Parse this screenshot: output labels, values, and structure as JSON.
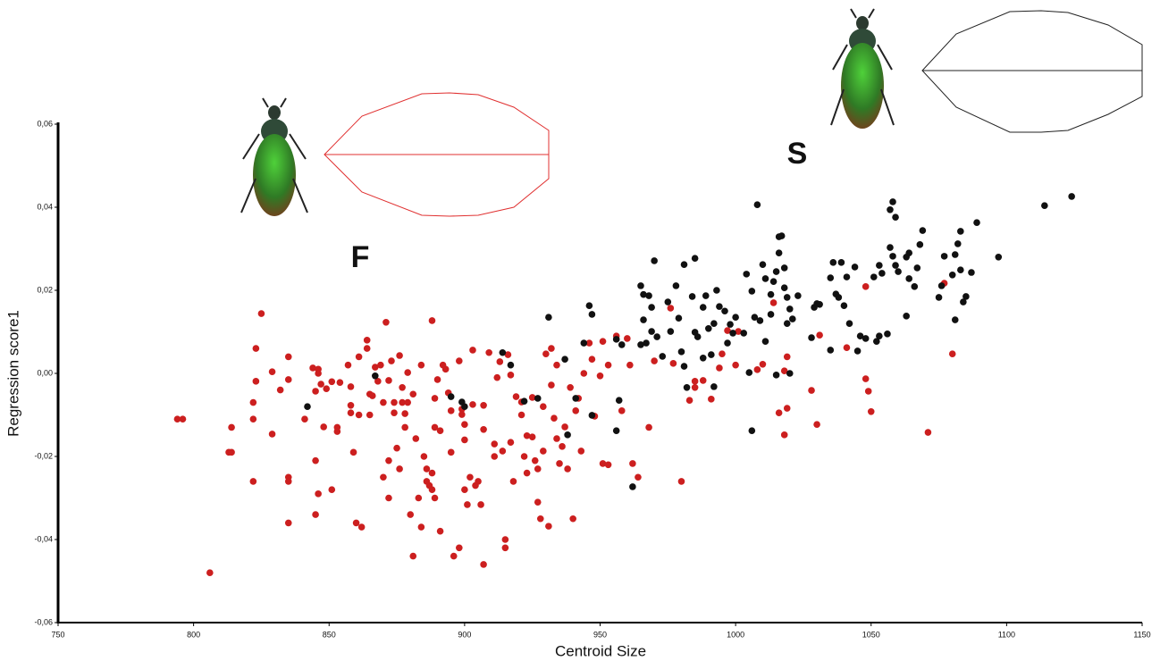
{
  "chart_data": {
    "type": "scatter",
    "x_label": "Centroid Size",
    "y_label": "Regression score1",
    "annotations": [
      "F",
      "S"
    ],
    "xlim": [
      750,
      1150
    ],
    "xticks": [
      750,
      800,
      850,
      900,
      950,
      1000,
      1050,
      1100,
      1150
    ],
    "ylim": [
      -0.06,
      0.06
    ],
    "yticks": [
      {
        "value": -0.06,
        "label": "-0,06"
      },
      {
        "value": -0.04,
        "label": "-0,04"
      },
      {
        "value": -0.02,
        "label": "-0,02"
      },
      {
        "value": 0,
        "label": "0,00"
      },
      {
        "value": 0.02,
        "label": "0,02"
      },
      {
        "value": 0.04,
        "label": "0,04"
      },
      {
        "value": 0.06,
        "label": "0,06"
      }
    ],
    "series": [
      {
        "color": "#cc1f1f",
        "x": [
          794,
          796,
          806,
          813,
          814,
          814,
          825,
          823,
          823,
          822,
          822,
          822,
          829,
          829,
          832,
          835,
          835,
          835,
          835,
          835,
          841,
          844,
          846,
          846,
          847,
          845,
          845,
          846,
          845,
          848,
          849,
          851,
          851,
          853,
          853,
          854,
          857,
          858,
          858,
          858,
          859,
          860,
          862,
          861,
          861,
          864,
          864,
          865,
          865,
          866,
          867,
          868,
          869,
          870,
          871,
          872,
          870,
          872,
          872,
          873,
          874,
          874,
          875,
          876,
          876,
          877,
          877,
          878,
          878,
          879,
          879,
          880,
          881,
          881,
          882,
          883,
          884,
          884,
          885,
          886,
          886,
          887,
          888,
          888,
          888,
          889,
          889,
          889,
          890,
          891,
          891,
          892,
          893,
          894,
          895,
          895,
          896,
          898,
          898,
          899,
          899,
          900,
          900,
          900,
          901,
          902,
          903,
          903,
          904,
          905,
          906,
          907,
          907,
          907,
          909,
          911,
          911,
          912,
          913,
          914,
          915,
          915,
          916,
          917,
          917,
          918,
          919,
          921,
          921,
          922,
          923,
          923,
          925,
          925,
          926,
          927,
          927,
          928,
          929,
          929,
          930,
          931,
          932,
          932,
          933,
          934,
          934,
          935,
          936,
          937,
          938,
          939,
          940,
          941,
          942,
          943,
          944,
          946,
          947,
          948,
          950,
          951,
          951,
          953,
          953,
          956,
          958,
          960,
          961,
          962,
          964,
          968,
          970,
          976,
          977,
          980,
          983,
          985,
          985,
          988,
          991,
          994,
          995,
          997,
          1000,
          1001,
          1008,
          1010,
          1014,
          1016,
          1018,
          1019,
          1018,
          1019,
          1028,
          1030,
          1031,
          1041,
          1048,
          1049,
          1050,
          1048,
          1071,
          1077,
          1080
        ],
        "values": [
          -0.011,
          -0.011,
          -0.048,
          -0.019,
          -0.019,
          -0.013,
          0.0144,
          0.006,
          -0.0019,
          -0.007,
          -0.011,
          -0.026,
          -0.0146,
          0.0004,
          -0.004,
          0.004,
          -0.025,
          -0.026,
          -0.036,
          -0.0015,
          -0.011,
          0.0013,
          0.001,
          0,
          -0.0026,
          -0.0043,
          -0.021,
          -0.029,
          -0.034,
          -0.0129,
          -0.0037,
          -0.028,
          -0.002,
          -0.013,
          -0.014,
          -0.0022,
          0.002,
          -0.0032,
          -0.0077,
          -0.0095,
          -0.019,
          -0.036,
          -0.037,
          0.004,
          -0.01,
          0.008,
          0.006,
          -0.005,
          -0.01,
          -0.0054,
          0.0015,
          -0.0019,
          0.002,
          -0.007,
          0.0123,
          -0.021,
          -0.025,
          -0.03,
          -0.0017,
          0.003,
          -0.007,
          -0.0095,
          -0.018,
          0.0043,
          -0.023,
          -0.0034,
          -0.007,
          -0.0097,
          -0.013,
          0.0002,
          -0.007,
          -0.034,
          -0.044,
          -0.005,
          -0.0157,
          -0.03,
          0.002,
          -0.037,
          -0.02,
          -0.023,
          -0.026,
          -0.027,
          0.0127,
          -0.024,
          -0.028,
          -0.03,
          -0.013,
          -0.006,
          -0.0015,
          -0.038,
          -0.0138,
          0.002,
          0.001,
          -0.0047,
          -0.009,
          -0.019,
          -0.044,
          -0.042,
          0.003,
          -0.0086,
          -0.0099,
          -0.0123,
          -0.016,
          -0.028,
          -0.0316,
          -0.025,
          -0.0075,
          0.0056,
          -0.027,
          -0.026,
          -0.0316,
          -0.046,
          -0.0077,
          -0.0135,
          0.005,
          -0.017,
          -0.02,
          -0.001,
          0.0028,
          -0.0187,
          -0.042,
          -0.04,
          0.0045,
          -0.0004,
          -0.0166,
          -0.026,
          -0.0056,
          -0.0069,
          -0.01,
          -0.02,
          -0.015,
          -0.024,
          -0.0153,
          -0.0058,
          -0.021,
          -0.023,
          -0.031,
          -0.035,
          -0.008,
          -0.0187,
          0.0047,
          -0.0368,
          -0.0028,
          0.006,
          -0.0108,
          -0.0157,
          0.002,
          -0.0217,
          -0.0176,
          -0.0129,
          -0.023,
          -0.0034,
          -0.035,
          -0.009,
          -0.006,
          -0.0187,
          0,
          0.0073,
          0.0034,
          -0.0103,
          -0.0006,
          0.0077,
          -0.0217,
          0.002,
          -0.022,
          0.009,
          -0.009,
          0.0084,
          0.002,
          -0.0217,
          -0.025,
          -0.013,
          0.003,
          0.0157,
          0.0024,
          -0.026,
          -0.0065,
          -0.0019,
          -0.0034,
          -0.0017,
          -0.0062,
          0.0013,
          0.0047,
          0.0103,
          0.002,
          0.0101,
          0.0009,
          0.0022,
          0.017,
          -0.0095,
          0.0006,
          0.004,
          -0.0148,
          -0.0084,
          -0.0041,
          -0.0123,
          0.0092,
          0.0062,
          -0.0013,
          -0.0043,
          -0.0092,
          0.0209,
          -0.0142,
          0.0217,
          0.0047
        ]
      },
      {
        "color": "#111111",
        "x": [
          842,
          867,
          895,
          899,
          900,
          914,
          917,
          922,
          927,
          931,
          937,
          938,
          941,
          944,
          946,
          947,
          947,
          956,
          957,
          956,
          958,
          962,
          965,
          965,
          966,
          966,
          967,
          968,
          969,
          969,
          970,
          971,
          973,
          975,
          976,
          978,
          979,
          980,
          981,
          981,
          982,
          984,
          985,
          985,
          986,
          988,
          988,
          989,
          990,
          991,
          992,
          992,
          993,
          994,
          996,
          997,
          998,
          999,
          1000,
          1003,
          1004,
          1005,
          1006,
          1006,
          1007,
          1008,
          1009,
          1010,
          1011,
          1011,
          1013,
          1013,
          1014,
          1015,
          1015,
          1016,
          1016,
          1017,
          1018,
          1018,
          1019,
          1019,
          1020,
          1020,
          1021,
          1023,
          1028,
          1029,
          1030,
          1031,
          1035,
          1035,
          1036,
          1037,
          1038,
          1039,
          1040,
          1041,
          1042,
          1044,
          1045,
          1046,
          1048,
          1051,
          1052,
          1053,
          1053,
          1054,
          1056,
          1057,
          1057,
          1058,
          1058,
          1059,
          1059,
          1060,
          1063,
          1063,
          1064,
          1064,
          1066,
          1067,
          1068,
          1069,
          1075,
          1076,
          1077,
          1080,
          1081,
          1081,
          1082,
          1083,
          1083,
          1084,
          1085,
          1087,
          1089,
          1097,
          1114,
          1124
        ],
        "values": [
          -0.008,
          -0.0006,
          -0.0056,
          -0.0069,
          -0.008,
          0.005,
          0.002,
          -0.0067,
          -0.006,
          0.0135,
          0.0034,
          -0.0148,
          -0.006,
          0.0073,
          0.0163,
          0.0142,
          -0.0101,
          0.0082,
          -0.0065,
          -0.0138,
          0.0069,
          -0.0273,
          0.0211,
          0.0069,
          0.019,
          0.0129,
          0.0073,
          0.0187,
          0.0159,
          0.0101,
          0.0271,
          0.0088,
          0.0041,
          0.0172,
          0.0101,
          0.0211,
          0.0133,
          0.0052,
          0.0017,
          0.0262,
          -0.0034,
          0.0185,
          0.0277,
          0.0099,
          0.0088,
          0.0159,
          0.0037,
          0.0187,
          0.0108,
          0.0045,
          -0.0032,
          0.012,
          0.02,
          0.0161,
          0.015,
          0.0073,
          0.0118,
          0.0097,
          0.0135,
          0.0097,
          0.0239,
          0.0002,
          -0.0138,
          0.0198,
          0.0135,
          0.0406,
          0.0127,
          0.0262,
          0.0077,
          0.0228,
          0.019,
          0.0142,
          0.0221,
          -0.0004,
          0.0245,
          0.0329,
          0.029,
          0.0331,
          0.0206,
          0.0254,
          0.012,
          0.0183,
          0.0155,
          0,
          0.0131,
          0.0187,
          0.0086,
          0.0159,
          0.0168,
          0.0166,
          0.023,
          0.0056,
          0.0267,
          0.0191,
          0.0183,
          0.0267,
          0.0163,
          0.0232,
          0.012,
          0.0256,
          0.0054,
          0.009,
          0.0084,
          0.0232,
          0.0077,
          0.026,
          0.009,
          0.0241,
          0.0095,
          0.0394,
          0.0303,
          0.0413,
          0.0282,
          0.0376,
          0.026,
          0.0245,
          0.0138,
          0.028,
          0.029,
          0.0228,
          0.0209,
          0.0254,
          0.031,
          0.0344,
          0.0183,
          0.0211,
          0.0282,
          0.0237,
          0.0129,
          0.0286,
          0.0312,
          0.0342,
          0.0249,
          0.0172,
          0.0185,
          0.0243,
          0.0363,
          0.028,
          0.0404,
          0.0426
        ]
      }
    ]
  }
}
